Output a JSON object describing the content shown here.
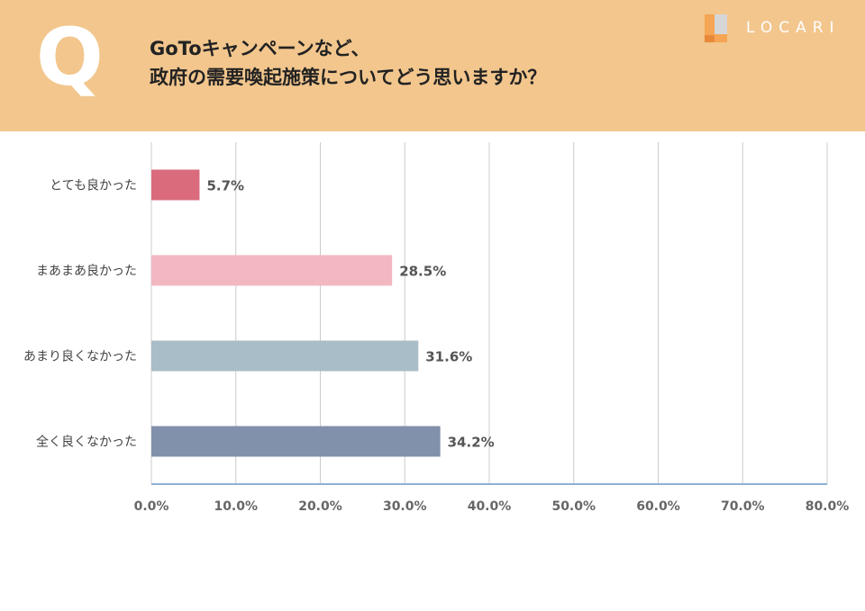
{
  "header": {
    "q_letter": "Q",
    "title_line1": "GoToキャンペーンなど、",
    "title_line2": "政府の需要喚起施策についてどう思いますか？",
    "logo_text": "LOCARI"
  },
  "colors": {
    "header_bg": "#f2c68d",
    "logo_orange": "#f5a553",
    "logo_gray": "#d6d6d6",
    "bar_colors": [
      "#d96b7c",
      "#f3b7c2",
      "#a9bdc9",
      "#8190ab"
    ],
    "grid": "#cccccc",
    "axis": "#8fb0d4"
  },
  "chart_data": {
    "type": "bar",
    "orientation": "horizontal",
    "categories": [
      "とても良かった",
      "まあまあ良かった",
      "あまり良くなかった",
      "全く良くなかった"
    ],
    "values": [
      5.7,
      28.5,
      31.6,
      34.2
    ],
    "data_labels": [
      "5.7%",
      "28.5%",
      "31.6%",
      "34.2%"
    ],
    "xlim": [
      0,
      80
    ],
    "xticks": [
      0,
      10,
      20,
      30,
      40,
      50,
      60,
      70,
      80
    ],
    "xtick_labels": [
      "0.0%",
      "10.0%",
      "20.0%",
      "30.0%",
      "40.0%",
      "50.0%",
      "60.0%",
      "70.0%",
      "80.0%"
    ],
    "grid": true,
    "legend": "none"
  }
}
